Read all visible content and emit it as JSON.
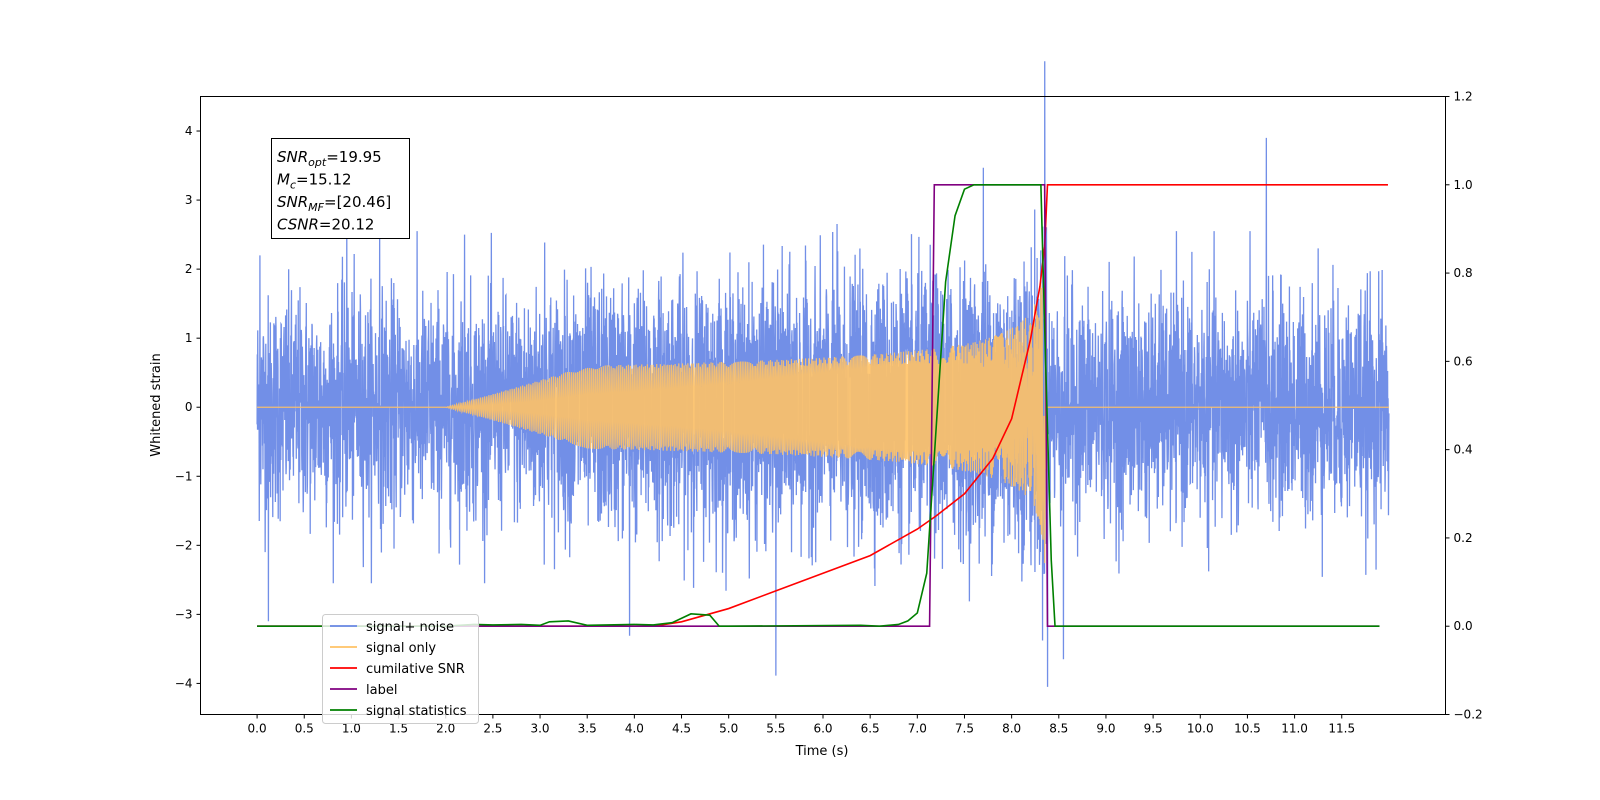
{
  "chart_data": {
    "type": "line",
    "xlabel": "Time (s)",
    "ylabel_left": "Whitened strain",
    "ylabel_right": "",
    "xlim": [
      -0.6,
      12.6
    ],
    "ylim_left": [
      -4.45,
      4.5
    ],
    "ylim_right": [
      -0.2,
      1.2
    ],
    "x_ticks": [
      0.0,
      0.5,
      1.0,
      1.5,
      2.0,
      2.5,
      3.0,
      3.5,
      4.0,
      4.5,
      5.0,
      5.5,
      6.0,
      6.5,
      7.0,
      7.5,
      8.0,
      8.5,
      9.0,
      9.5,
      10.0,
      10.5,
      11.0,
      11.5
    ],
    "x_tick_labels": [
      "0.0",
      "0.5",
      "1.0",
      "1.5",
      "2.0",
      "2.5",
      "3.0",
      "3.5",
      "4.0",
      "4.5",
      "5.0",
      "5.5",
      "6.0",
      "6.5",
      "7.0",
      "7.5",
      "8.0",
      "8.5",
      "9.0",
      "9.5",
      "10.0",
      "10.5",
      "11.0",
      "11.5"
    ],
    "y_ticks_left": [
      4,
      3,
      2,
      1,
      0,
      -1,
      -2,
      -3,
      -4
    ],
    "y_tick_labels_left": [
      "4",
      "3",
      "2",
      "1",
      "0",
      "−1",
      "−2",
      "−3",
      "−4"
    ],
    "y_ticks_right": [
      1.2,
      1.0,
      0.8,
      0.6,
      0.4,
      0.2,
      0.0,
      -0.2
    ],
    "y_tick_labels_right": [
      "1.2",
      "1.0",
      "0.8",
      "0.6",
      "0.4",
      "0.2",
      "0.0",
      "−0.2"
    ],
    "grid": false,
    "legend_position": "lower-left",
    "annotation": {
      "lines": [
        {
          "sym": "SNR",
          "sub": "opt",
          "value": "=19.95"
        },
        {
          "sym": "M",
          "sub": "c",
          "value": "=15.12"
        },
        {
          "sym": "SNR",
          "sub": "MF",
          "value": "=[20.46]"
        },
        {
          "sym": "CSNR",
          "sub": "",
          "value": "=20.12"
        }
      ]
    },
    "series": [
      {
        "name": "signal+ noise",
        "axis": "left",
        "color": "#6a89e6",
        "description_range": [
          0.0,
          12.0
        ],
        "noise_std": 0.8,
        "peaks": [
          [
            0.03,
            2.2
          ],
          [
            0.12,
            -3.1
          ],
          [
            0.95,
            2.6
          ],
          [
            1.3,
            2.5
          ],
          [
            2.2,
            2.5
          ],
          [
            3.05,
            2.4
          ],
          [
            3.95,
            -3.3
          ],
          [
            5.5,
            -3.9
          ],
          [
            6.15,
            2.5
          ],
          [
            7.7,
            3.25
          ],
          [
            8.35,
            4.1
          ],
          [
            8.38,
            -4.05
          ],
          [
            8.55,
            -3.65
          ],
          [
            10.7,
            3.9
          ],
          [
            11.25,
            2.3
          ]
        ]
      },
      {
        "name": "signal only",
        "axis": "left",
        "color": "#ffc266",
        "chirp_start": 2.0,
        "chirp_end": 8.37,
        "amplitude_at_end": 2.7
      },
      {
        "name": "cumilative SNR",
        "axis": "right",
        "color": "#ff0000",
        "x": [
          0.0,
          4.2,
          4.5,
          5.0,
          5.5,
          6.0,
          6.5,
          7.0,
          7.2,
          7.5,
          7.8,
          8.0,
          8.2,
          8.3,
          8.35,
          8.38,
          8.4,
          11.99
        ],
        "y": [
          0.0,
          0.0,
          0.01,
          0.04,
          0.08,
          0.12,
          0.16,
          0.22,
          0.25,
          0.3,
          0.38,
          0.47,
          0.65,
          0.77,
          0.86,
          1.0,
          1.0,
          1.0
        ]
      },
      {
        "name": "label",
        "axis": "right",
        "color": "#800080",
        "x": [
          0.0,
          7.13,
          7.18,
          8.35,
          8.38,
          11.9
        ],
        "y": [
          0.0,
          0.0,
          1.0,
          1.0,
          0.0,
          0.0
        ]
      },
      {
        "name": "signal statistics",
        "axis": "right",
        "color": "#008000",
        "x": [
          0.0,
          2.0,
          2.3,
          2.5,
          2.8,
          3.0,
          3.1,
          3.3,
          3.5,
          4.0,
          4.2,
          4.4,
          4.6,
          4.8,
          4.9,
          5.0,
          6.4,
          6.6,
          6.8,
          6.9,
          7.0,
          7.1,
          7.2,
          7.3,
          7.4,
          7.5,
          7.6,
          8.31,
          8.36,
          8.42,
          8.46,
          11.9
        ],
        "y": [
          0.0,
          0.0,
          0.004,
          0.003,
          0.004,
          0.002,
          0.01,
          0.012,
          0.002,
          0.004,
          0.003,
          0.008,
          0.028,
          0.025,
          0.0,
          0.0,
          0.002,
          0.0,
          0.004,
          0.012,
          0.03,
          0.12,
          0.45,
          0.78,
          0.93,
          0.99,
          1.0,
          1.0,
          0.6,
          0.15,
          0.0,
          0.0
        ]
      }
    ],
    "legend_entries": [
      {
        "name": "signal+ noise",
        "color": "#6a89e6"
      },
      {
        "name": "signal only",
        "color": "#ffc266"
      },
      {
        "name": "cumilative SNR",
        "color": "#ff0000"
      },
      {
        "name": "label",
        "color": "#800080"
      },
      {
        "name": "signal statistics",
        "color": "#008000"
      }
    ]
  }
}
